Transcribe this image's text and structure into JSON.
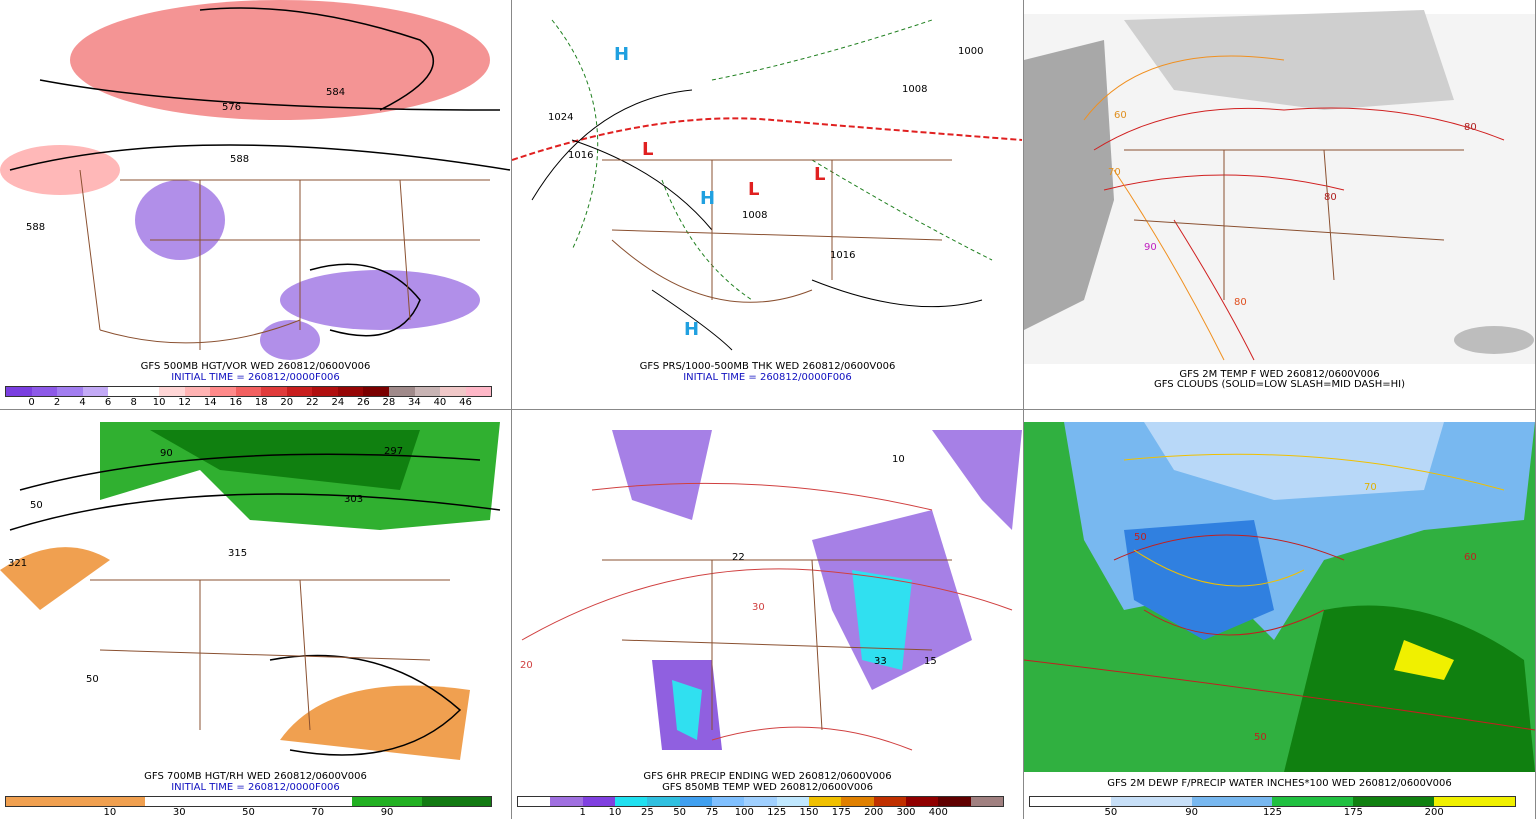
{
  "panels": [
    {
      "captions": [
        "GFS 500MB HGT/VOR WED 260812/0600V006",
        "INITIAL TIME = 260812/0000F006"
      ],
      "map_labels": [
        "576",
        "584",
        "588",
        "588"
      ],
      "colorbar": {
        "colors": [
          "#7a3fe0",
          "#8d5ae8",
          "#a27ef0",
          "#c3aaf6",
          "#ffffff",
          "#ffffff",
          "#ffd6d6",
          "#ffb3b3",
          "#ff8a8a",
          "#f26060",
          "#e03b3b",
          "#c81e1e",
          "#b00f0f",
          "#960606",
          "#7a0000",
          "#a08a8a",
          "#c8b4b4",
          "#f0c8c8",
          "#ffb8c8"
        ],
        "labels": [
          "0",
          "2",
          "4",
          "6",
          "8",
          "10",
          "12",
          "14",
          "16",
          "18",
          "20",
          "22",
          "24",
          "26",
          "28",
          "34",
          "40",
          "46"
        ]
      }
    },
    {
      "captions": [
        "GFS PRS/1000-500MB THK WED 260812/0600V006",
        "INITIAL TIME = 260812/0000F006"
      ],
      "map_labels": [
        "1024",
        "1016",
        "1008",
        "1016",
        "1000",
        "1008",
        "H",
        "H",
        "L",
        "L",
        "L",
        "H"
      ]
    },
    {
      "captions": [
        "GFS 2M TEMP F WED 260812/0600V006",
        "GFS CLOUDS (SOLID=LOW SLASH=MID DASH=HI)"
      ],
      "map_labels": [
        "80",
        "80",
        "90",
        "60",
        "70",
        "80"
      ]
    },
    {
      "captions": [
        "GFS 700MB HGT/RH WED 260812/0600V006",
        "INITIAL TIME = 260812/0000F006"
      ],
      "map_labels": [
        "321",
        "315",
        "303",
        "297",
        "50",
        "90",
        "50"
      ],
      "colorbar": {
        "colors": [
          "#f0a050",
          "#f0a050",
          "#ffffff",
          "#ffffff",
          "#ffffff",
          "#22b022",
          "#127a12"
        ],
        "labels": [
          "10",
          "30",
          "50",
          "70",
          "90"
        ]
      }
    },
    {
      "captions": [
        "GFS 6HR PRECIP ENDING WED 260812/0600V006",
        "GFS 850MB TEMP WED 260812/0600V006"
      ],
      "map_labels": [
        "20",
        "30",
        "33",
        "15",
        "22",
        "10"
      ],
      "colorbar": {
        "colors": [
          "#ffffff",
          "#a070e0",
          "#8040e0",
          "#20e0f0",
          "#30c0e0",
          "#40a0f0",
          "#80c0ff",
          "#a0d0ff",
          "#c0e8ff",
          "#f0c000",
          "#e08000",
          "#c03000",
          "#900000",
          "#600000",
          "#a08080"
        ],
        "labels": [
          "1",
          "10",
          "25",
          "50",
          "75",
          "100",
          "125",
          "150",
          "175",
          "200",
          "300",
          "400"
        ]
      }
    },
    {
      "captions": [
        "GFS 2M DEWP F/PRECIP WATER INCHES*100 WED 260812/0600V006"
      ],
      "map_labels": [
        "50",
        "70",
        "50",
        "60"
      ],
      "colorbar": {
        "colors": [
          "#ffffff",
          "#c8e0f8",
          "#78b8f0",
          "#20c040",
          "#108010",
          "#f0f000"
        ],
        "labels": [
          "50",
          "90",
          "125",
          "175",
          "200"
        ]
      }
    }
  ]
}
